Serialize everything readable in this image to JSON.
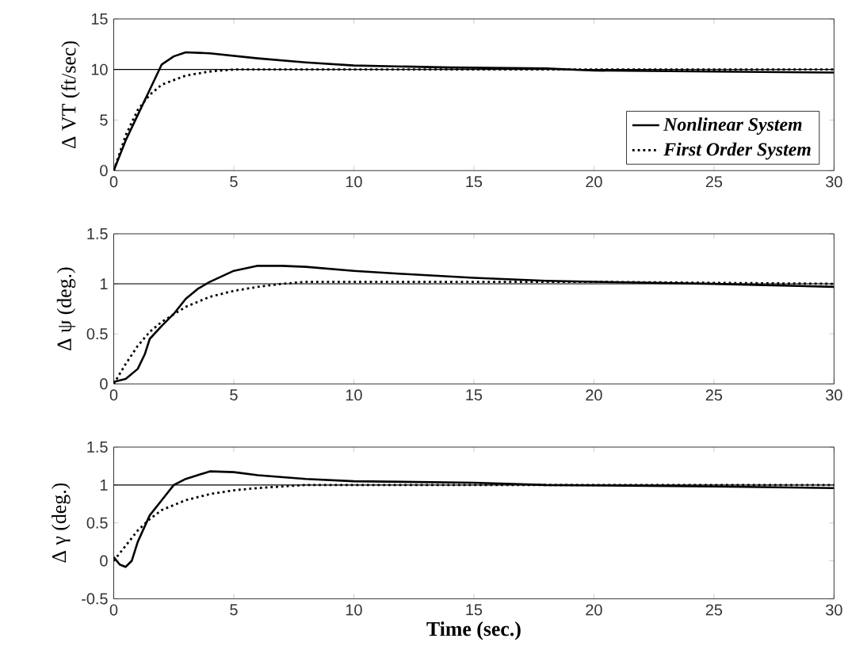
{
  "chart_data": [
    {
      "type": "line",
      "ylabel": "Δ VT  (ft/sec)",
      "xlim": [
        0,
        30
      ],
      "ylim": [
        0,
        15
      ],
      "xticks": [
        0,
        5,
        10,
        15,
        20,
        25,
        30
      ],
      "yticks": [
        0,
        5,
        10,
        15
      ],
      "legend": "bottom right",
      "ref_lines": [
        {
          "axis": "y",
          "value": 10,
          "color": "#000000"
        }
      ],
      "series": [
        {
          "name": "Nonlinear System",
          "color": "#000000",
          "line_style": "solid",
          "x": [
            0,
            0.5,
            1,
            1.5,
            2,
            2.5,
            3,
            4,
            6,
            8,
            10,
            14,
            18,
            20,
            25,
            30
          ],
          "values": [
            0,
            3,
            5.5,
            8,
            10.5,
            11.3,
            11.7,
            11.6,
            11.1,
            10.7,
            10.4,
            10.2,
            10.1,
            9.9,
            9.8,
            9.7
          ]
        },
        {
          "name": "First Order System",
          "color": "#000000",
          "line_style": "dotted",
          "x": [
            0,
            0.5,
            1,
            1.5,
            2,
            3,
            4,
            5,
            6,
            10,
            30
          ],
          "values": [
            0,
            3.5,
            6,
            7.5,
            8.5,
            9.4,
            9.8,
            10,
            10,
            10,
            10
          ]
        }
      ]
    },
    {
      "type": "line",
      "ylabel": "Δ ψ  (deg.)",
      "xlim": [
        0,
        30
      ],
      "ylim": [
        0,
        1.5
      ],
      "xticks": [
        0,
        5,
        10,
        15,
        20,
        25,
        30
      ],
      "yticks": [
        0,
        0.5,
        1,
        1.5
      ],
      "ref_lines": [
        {
          "axis": "y",
          "value": 1,
          "color": "#000000"
        }
      ],
      "series": [
        {
          "color": "#000000",
          "line_style": "solid",
          "x": [
            0,
            0.5,
            1,
            1.3,
            1.5,
            2,
            2.5,
            3,
            3.5,
            4,
            5,
            6,
            7,
            8,
            10,
            12,
            15,
            18,
            20,
            25,
            30
          ],
          "values": [
            0.02,
            0.05,
            0.15,
            0.3,
            0.45,
            0.58,
            0.7,
            0.85,
            0.95,
            1.02,
            1.13,
            1.18,
            1.18,
            1.17,
            1.13,
            1.1,
            1.06,
            1.03,
            1.02,
            1.0,
            0.97
          ]
        },
        {
          "color": "#000000",
          "line_style": "dotted",
          "x": [
            0,
            0.5,
            1,
            1.5,
            2,
            3,
            4,
            5,
            6,
            7,
            8,
            10,
            15,
            20,
            30
          ],
          "values": [
            0,
            0.2,
            0.38,
            0.52,
            0.62,
            0.77,
            0.87,
            0.93,
            0.97,
            1.0,
            1.02,
            1.02,
            1.02,
            1.02,
            1.0
          ]
        }
      ]
    },
    {
      "type": "line",
      "ylabel": "Δ γ  (deg.)",
      "xlabel": "Time  (sec.)",
      "xlim": [
        0,
        30
      ],
      "ylim": [
        -0.5,
        1.5
      ],
      "xticks": [
        0,
        5,
        10,
        15,
        20,
        25,
        30
      ],
      "yticks": [
        -0.5,
        0,
        0.5,
        1,
        1.5
      ],
      "ref_lines": [
        {
          "axis": "y",
          "value": 1,
          "color": "#000000"
        }
      ],
      "series": [
        {
          "color": "#000000",
          "line_style": "solid",
          "x": [
            0,
            0.25,
            0.5,
            0.75,
            1,
            1.5,
            2,
            2.5,
            3,
            4,
            5,
            6,
            8,
            10,
            15,
            18,
            25,
            30
          ],
          "values": [
            0.05,
            -0.05,
            -0.08,
            0.0,
            0.25,
            0.6,
            0.8,
            1.0,
            1.08,
            1.18,
            1.17,
            1.13,
            1.08,
            1.05,
            1.03,
            1.0,
            0.98,
            0.96
          ]
        },
        {
          "color": "#000000",
          "line_style": "dotted",
          "x": [
            0,
            0.5,
            1,
            1.5,
            2,
            3,
            4,
            5,
            6,
            8,
            10,
            30
          ],
          "values": [
            0,
            0.2,
            0.4,
            0.55,
            0.67,
            0.8,
            0.88,
            0.93,
            0.96,
            1.0,
            1.0,
            1.0
          ]
        }
      ]
    }
  ]
}
